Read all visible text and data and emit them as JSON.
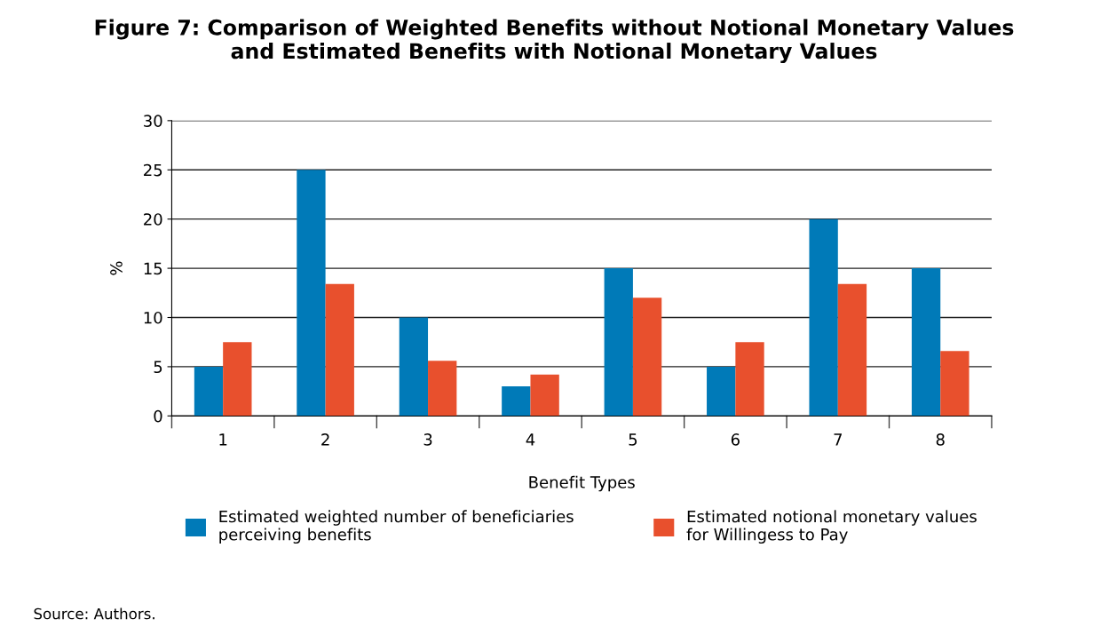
{
  "chart_data": {
    "type": "bar",
    "title": "Figure 7: Comparison of Weighted Benefits without Notional Monetary Values\nand Estimated Benefits with Notional Monetary Values",
    "xlabel": "Benefit Types",
    "ylabel": "%",
    "categories": [
      "1",
      "2",
      "3",
      "4",
      "5",
      "6",
      "7",
      "8"
    ],
    "series": [
      {
        "name": "Estimated weighted number of beneficiaries\nperceiving benefits",
        "color": "#007ab8",
        "values": [
          5,
          25,
          10,
          3,
          15,
          5,
          20,
          15
        ]
      },
      {
        "name": "Estimated notional monetary values\nfor Willingess to Pay",
        "color": "#e8502d",
        "values": [
          7.5,
          13.4,
          5.6,
          4.2,
          12,
          7.5,
          13.4,
          6.6
        ]
      }
    ],
    "ylim": [
      0,
      30
    ],
    "yticks": [
      0,
      5,
      10,
      15,
      20,
      25,
      30
    ],
    "grid": "y",
    "legend": "bottom",
    "annotations": [
      "Source: Authors."
    ]
  }
}
